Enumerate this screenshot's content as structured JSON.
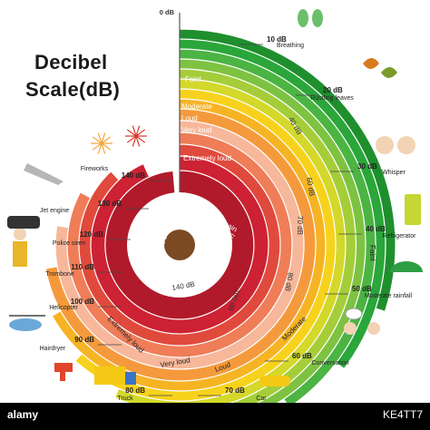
{
  "title": {
    "line1": "Decibel",
    "line2": "Scale(dB)"
  },
  "bands": [
    {
      "label": "Faint",
      "color": "#2aa63a"
    },
    {
      "label": "Moderate",
      "color": "#8cc63f"
    },
    {
      "label": "Loud",
      "color": "#c9d42a"
    },
    {
      "label": "Very loud",
      "color": "#f4c01e"
    },
    {
      "label": "Extremely loud",
      "color": "#f4a94a"
    },
    {
      "label": "Threshold of pain",
      "color": "#d6202a"
    }
  ],
  "rings": [
    {
      "db": "10 dB",
      "color": "#1f8f2e"
    },
    {
      "db": "20 dB",
      "color": "#2aa63a"
    },
    {
      "db": "30 dB",
      "color": "#4bb443"
    },
    {
      "db": "40 dB",
      "color": "#7ec242"
    },
    {
      "db": "50 dB",
      "color": "#a5cd39"
    },
    {
      "db": "60 dB",
      "color": "#d3d82a"
    },
    {
      "db": "70 dB",
      "color": "#f7d21c"
    },
    {
      "db": "80 dB",
      "color": "#f6b424"
    },
    {
      "db": "90 dB",
      "color": "#f59a3c"
    },
    {
      "db": "100 dB",
      "color": "#f7b79a"
    },
    {
      "db": "110 dB",
      "color": "#ef7d58"
    },
    {
      "db": "120 dB",
      "color": "#e04a3c"
    },
    {
      "db": "130 dB",
      "color": "#cc2233"
    },
    {
      "db": "140 dB",
      "color": "#b01a2a"
    }
  ],
  "ring_labels_inside": {
    "r40": "40 dB",
    "r60": "60 dB",
    "r70": "70 dB",
    "r80": "80 dB",
    "r100": "100 dB",
    "r140": "140 dB"
  },
  "zero_label": "0 dB",
  "sources": [
    {
      "db": "10 dB",
      "name": "Breathing",
      "icon": "lungs-icon"
    },
    {
      "db": "20 dB",
      "name": "Rustling leaves",
      "icon": "leaves-icon"
    },
    {
      "db": "30 dB",
      "name": "Whisper",
      "icon": "whisper-icon"
    },
    {
      "db": "40 dB",
      "name": "Refrigerator",
      "icon": "refrigerator-icon"
    },
    {
      "db": "50 dB",
      "name": "Moderate rainfall",
      "icon": "umbrella-icon"
    },
    {
      "db": "60 dB",
      "name": "Conversation",
      "icon": "conversation-icon"
    },
    {
      "db": "70 dB",
      "name": "Car",
      "icon": "car-icon"
    },
    {
      "db": "80 dB",
      "name": "Truck",
      "icon": "truck-icon"
    },
    {
      "db": "90 dB",
      "name": "Hairdryer",
      "icon": "hairdryer-icon"
    },
    {
      "db": "100 dB",
      "name": "Helicopter",
      "icon": "helicopter-icon"
    },
    {
      "db": "110 dB",
      "name": "Trombone",
      "icon": "trombone-icon"
    },
    {
      "db": "120 dB",
      "name": "Police siren",
      "icon": "police-car-icon"
    },
    {
      "db": "130 dB",
      "name": "Jet engine",
      "icon": "jet-icon"
    },
    {
      "db": "140 dB",
      "name": "Fireworks",
      "icon": "fireworks-icon"
    }
  ],
  "footer": {
    "left": "alamy",
    "right": "KE4TT7"
  }
}
